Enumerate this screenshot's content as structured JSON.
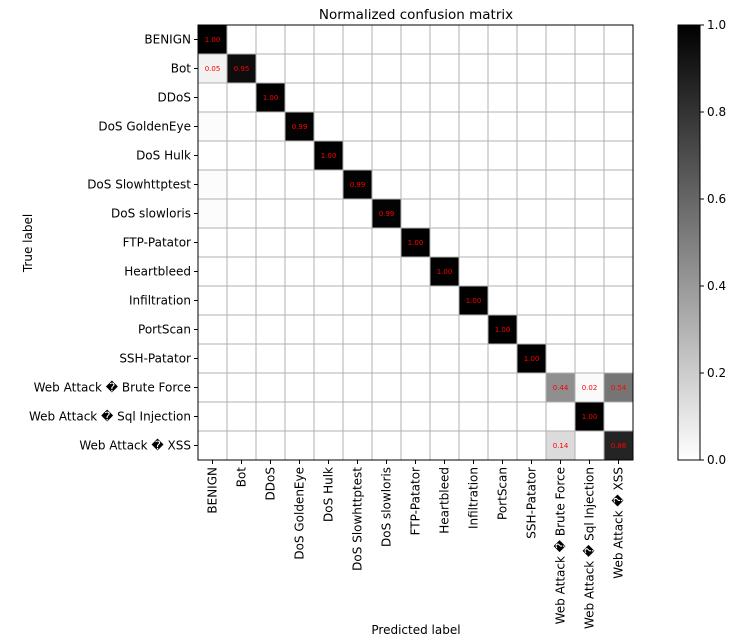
{
  "chart_data": {
    "type": "heatmap",
    "title": "Normalized confusion matrix",
    "xlabel": "Predicted label",
    "ylabel": "True label",
    "labels": [
      "BENIGN",
      "Bot",
      "DDoS",
      "DoS GoldenEye",
      "DoS Hulk",
      "DoS Slowhttptest",
      "DoS slowloris",
      "FTP-Patator",
      "Heartbleed",
      "Infiltration",
      "PortScan",
      "SSH-Patator",
      "Web Attack � Brute Force",
      "Web Attack � Sql Injection",
      "Web Attack � XSS"
    ],
    "matrix": [
      [
        1.0,
        0,
        0,
        0,
        0,
        0,
        0,
        0,
        0,
        0,
        0,
        0,
        0,
        0,
        0
      ],
      [
        0.05,
        0.95,
        0,
        0,
        0,
        0,
        0,
        0,
        0,
        0,
        0,
        0,
        0,
        0,
        0
      ],
      [
        0,
        0,
        1.0,
        0,
        0,
        0,
        0,
        0,
        0,
        0,
        0,
        0,
        0,
        0,
        0
      ],
      [
        0.01,
        0,
        0,
        0.99,
        0,
        0,
        0,
        0,
        0,
        0,
        0,
        0,
        0,
        0,
        0
      ],
      [
        0,
        0,
        0,
        0,
        1.0,
        0,
        0,
        0,
        0,
        0,
        0,
        0,
        0,
        0,
        0
      ],
      [
        0.01,
        0,
        0,
        0,
        0,
        0.99,
        0,
        0,
        0,
        0,
        0,
        0,
        0,
        0,
        0
      ],
      [
        0.01,
        0,
        0,
        0,
        0,
        0,
        0.99,
        0,
        0,
        0,
        0,
        0,
        0,
        0,
        0
      ],
      [
        0,
        0,
        0,
        0,
        0,
        0,
        0,
        1.0,
        0,
        0,
        0,
        0,
        0,
        0,
        0
      ],
      [
        0,
        0,
        0,
        0,
        0,
        0,
        0,
        0,
        1.0,
        0,
        0,
        0,
        0,
        0,
        0
      ],
      [
        0,
        0,
        0,
        0,
        0,
        0,
        0,
        0,
        0,
        1.0,
        0,
        0,
        0,
        0,
        0
      ],
      [
        0,
        0,
        0,
        0,
        0,
        0,
        0,
        0,
        0,
        0,
        1.0,
        0,
        0,
        0,
        0
      ],
      [
        0,
        0,
        0,
        0,
        0,
        0,
        0,
        0,
        0,
        0,
        0,
        1.0,
        0,
        0,
        0
      ],
      [
        0,
        0,
        0,
        0,
        0,
        0,
        0,
        0,
        0,
        0,
        0,
        0,
        0.44,
        0.02,
        0.54
      ],
      [
        0,
        0,
        0,
        0,
        0,
        0,
        0,
        0,
        0,
        0,
        0,
        0,
        0,
        1.0,
        0
      ],
      [
        0,
        0,
        0,
        0,
        0,
        0,
        0,
        0,
        0,
        0,
        0,
        0,
        0.14,
        0,
        0.86
      ]
    ],
    "shown_value_labels": [
      [
        0,
        0,
        "1.00"
      ],
      [
        1,
        0,
        "0.05"
      ],
      [
        1,
        1,
        "0.95"
      ],
      [
        2,
        2,
        "1.00"
      ],
      [
        3,
        3,
        "0.99"
      ],
      [
        4,
        4,
        "1.00"
      ],
      [
        5,
        5,
        "0.99"
      ],
      [
        6,
        6,
        "0.99"
      ],
      [
        7,
        7,
        "1.00"
      ],
      [
        8,
        8,
        "1.00"
      ],
      [
        9,
        9,
        "1.00"
      ],
      [
        10,
        10,
        "1.00"
      ],
      [
        11,
        11,
        "1.00"
      ],
      [
        12,
        12,
        "0.44"
      ],
      [
        12,
        13,
        "0.02"
      ],
      [
        12,
        14,
        "0.54"
      ],
      [
        13,
        13,
        "1.00"
      ],
      [
        14,
        12,
        "0.14"
      ],
      [
        14,
        14,
        "0.86"
      ]
    ],
    "colormap": "gray_r",
    "value_label_color": "#ff0000",
    "grid_color": "#b0b0b0",
    "colorbar": {
      "range": [
        0.0,
        1.0
      ],
      "ticks": [
        "0.0",
        "0.2",
        "0.4",
        "0.6",
        "0.8",
        "1.0"
      ]
    }
  }
}
